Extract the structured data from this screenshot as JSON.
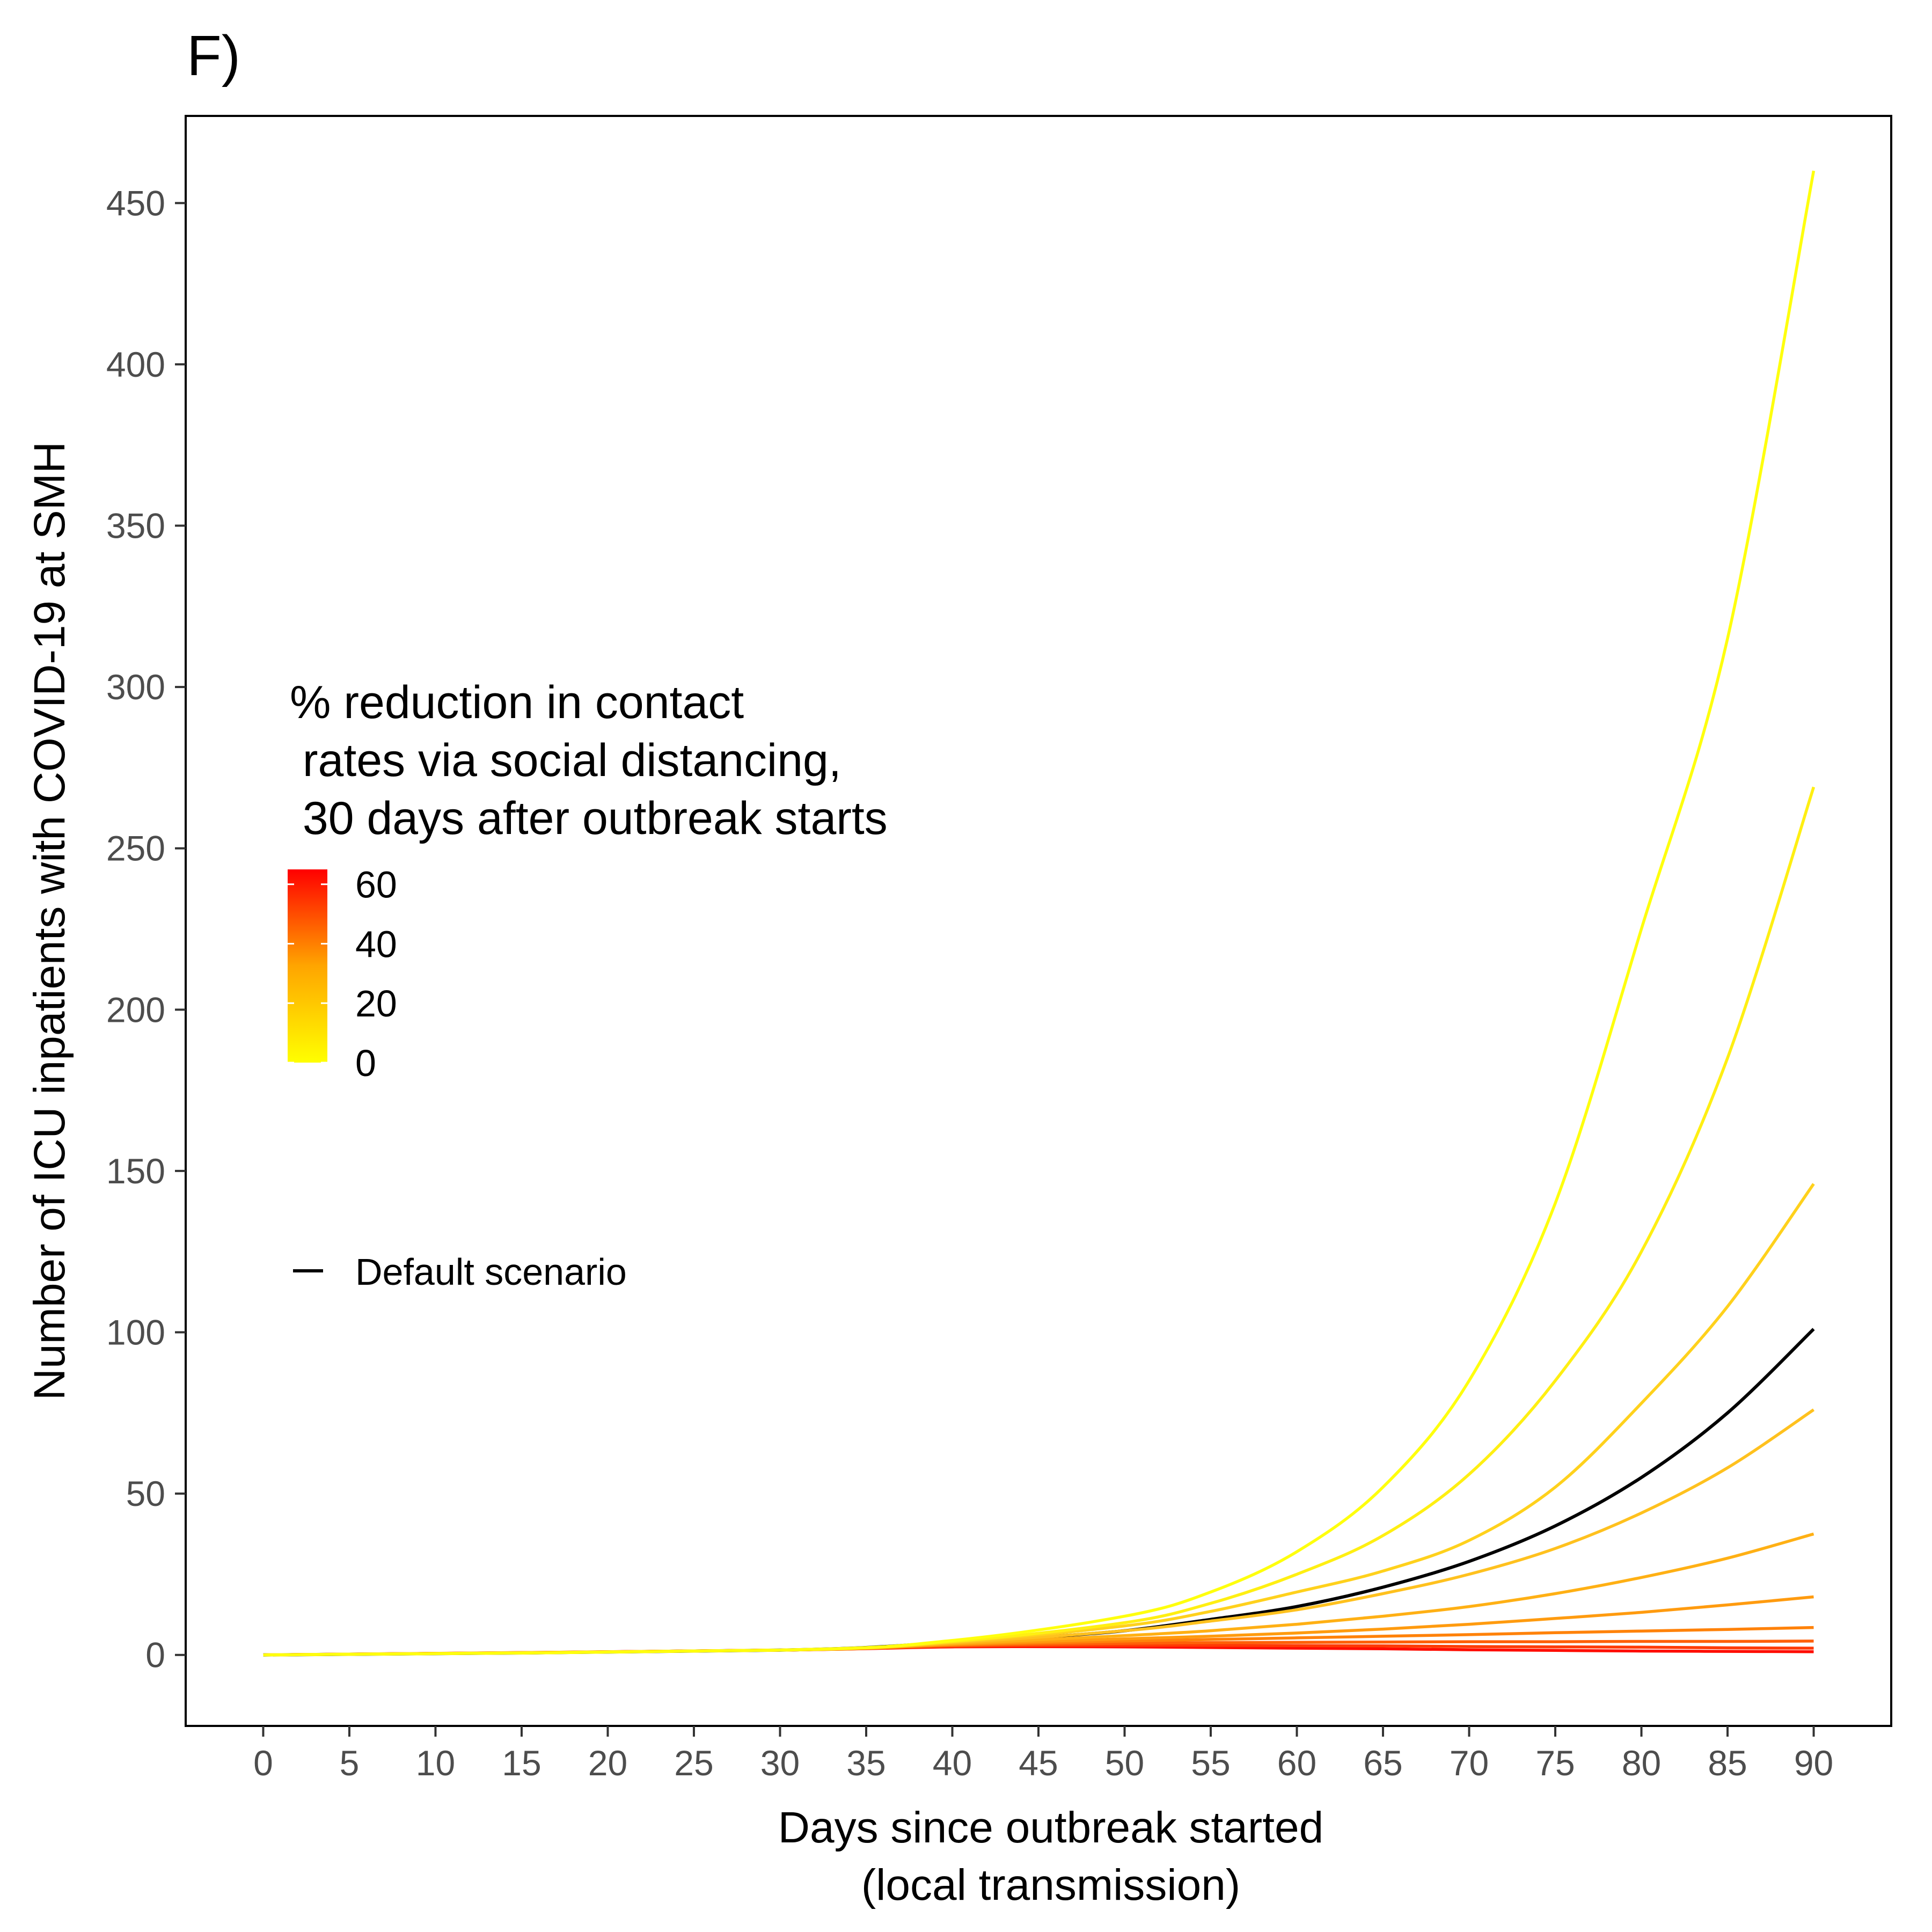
{
  "chart_data": {
    "type": "line",
    "panel_label": "F)",
    "xlabel_lines": [
      "Days since outbreak started",
      "(local transmission)"
    ],
    "ylabel": "Number of ICU inpatients with COVID-19 at SMH",
    "xlim": [
      -4.5,
      94.5
    ],
    "ylim": [
      -22,
      477
    ],
    "x_ticks": [
      0,
      5,
      10,
      15,
      20,
      25,
      30,
      35,
      40,
      45,
      50,
      55,
      60,
      65,
      70,
      75,
      80,
      85,
      90
    ],
    "y_ticks": [
      0,
      50,
      100,
      150,
      200,
      250,
      300,
      350,
      400,
      450
    ],
    "legend": {
      "title_lines": [
        "% reduction in contact",
        " rates via social distancing,",
        " 30 days after outbreak starts"
      ],
      "colorbar": {
        "min": 0,
        "max": 65,
        "low_color": "#FFFF00",
        "mid_color": "#FFA500",
        "high_color": "#FF0000"
      },
      "colorbar_labels": [
        "60",
        "40",
        "20",
        "0"
      ],
      "colorbar_label_values": [
        60,
        40,
        20,
        0
      ],
      "line_entry": "Default scenario",
      "line_entry_color": "#000000"
    },
    "series": [
      {
        "reduction": 0,
        "color": "#FFFF0D",
        "x": [
          0,
          30,
          40,
          50,
          55,
          60,
          65,
          70,
          75,
          80,
          85,
          90
        ],
        "y": [
          0,
          1.5,
          4.5,
          12,
          19.5,
          32,
          52,
          85,
          140,
          225,
          315,
          460
        ]
      },
      {
        "reduction": 7,
        "color": "#FFEF12",
        "x": [
          0,
          30,
          40,
          50,
          55,
          60,
          65,
          70,
          75,
          80,
          85,
          90
        ],
        "y": [
          0,
          1.5,
          4.2,
          10,
          16,
          25,
          37,
          56,
          85,
          125,
          185,
          269
        ]
      },
      {
        "reduction": 14,
        "color": "#FFD11C",
        "x": [
          0,
          30,
          40,
          50,
          55,
          60,
          65,
          70,
          75,
          80,
          85,
          90
        ],
        "y": [
          0,
          1.5,
          4,
          9,
          13.5,
          19.5,
          26,
          35.5,
          52,
          78,
          108,
          146
        ]
      },
      {
        "reduction": 21,
        "color": "#FFC11E",
        "x": [
          0,
          30,
          40,
          50,
          55,
          60,
          65,
          70,
          75,
          80,
          85,
          90
        ],
        "y": [
          0,
          1.5,
          3.8,
          7.5,
          10.5,
          14,
          19,
          25,
          33,
          44,
          58,
          76
        ]
      },
      {
        "reduction": 28,
        "color": "#FFB014",
        "x": [
          0,
          30,
          40,
          50,
          55,
          60,
          65,
          70,
          75,
          80,
          85,
          90
        ],
        "y": [
          0,
          1.5,
          3.5,
          6,
          7.5,
          9.5,
          12,
          15,
          19,
          24,
          30,
          37.5
        ]
      },
      {
        "reduction": 35,
        "color": "#FF9B0F",
        "x": [
          0,
          30,
          40,
          50,
          55,
          60,
          65,
          70,
          75,
          80,
          85,
          90
        ],
        "y": [
          0,
          1.5,
          3.3,
          5,
          5.8,
          6.8,
          8,
          9.5,
          11.3,
          13.2,
          15.5,
          18
        ]
      },
      {
        "reduction": 42,
        "color": "#FF820A",
        "x": [
          0,
          30,
          40,
          50,
          55,
          60,
          65,
          70,
          75,
          80,
          85,
          90
        ],
        "y": [
          0,
          1.5,
          3.1,
          4.3,
          4.8,
          5.3,
          5.8,
          6.3,
          6.9,
          7.4,
          7.9,
          8.5
        ]
      },
      {
        "reduction": 50,
        "color": "#FF6008",
        "x": [
          0,
          30,
          40,
          50,
          55,
          60,
          65,
          70,
          75,
          80,
          85,
          90
        ],
        "y": [
          0,
          1.5,
          2.9,
          3.6,
          3.8,
          3.9,
          4,
          4.1,
          4.1,
          4.2,
          4.2,
          4.3
        ]
      },
      {
        "reduction": 57,
        "color": "#FF3A04",
        "x": [
          0,
          30,
          40,
          50,
          55,
          60,
          65,
          70,
          75,
          80,
          85,
          90
        ],
        "y": [
          0,
          1.5,
          2.7,
          3,
          3,
          2.9,
          2.8,
          2.6,
          2.5,
          2.4,
          2.2,
          2.1
        ]
      },
      {
        "reduction": 64,
        "color": "#FF0D00",
        "x": [
          0,
          30,
          40,
          50,
          55,
          60,
          65,
          70,
          75,
          80,
          85,
          90
        ],
        "y": [
          0,
          1.5,
          2.5,
          2.5,
          2.3,
          2.1,
          1.9,
          1.6,
          1.4,
          1.2,
          1.1,
          1.0
        ]
      },
      {
        "name": "Default scenario",
        "color": "#000000",
        "x": [
          0,
          30,
          40,
          45,
          50,
          55,
          60,
          65,
          70,
          75,
          80,
          85,
          90
        ],
        "y": [
          0,
          1.5,
          4,
          5.5,
          7.5,
          11,
          15,
          21,
          29,
          40,
          55,
          75,
          101
        ]
      }
    ]
  }
}
